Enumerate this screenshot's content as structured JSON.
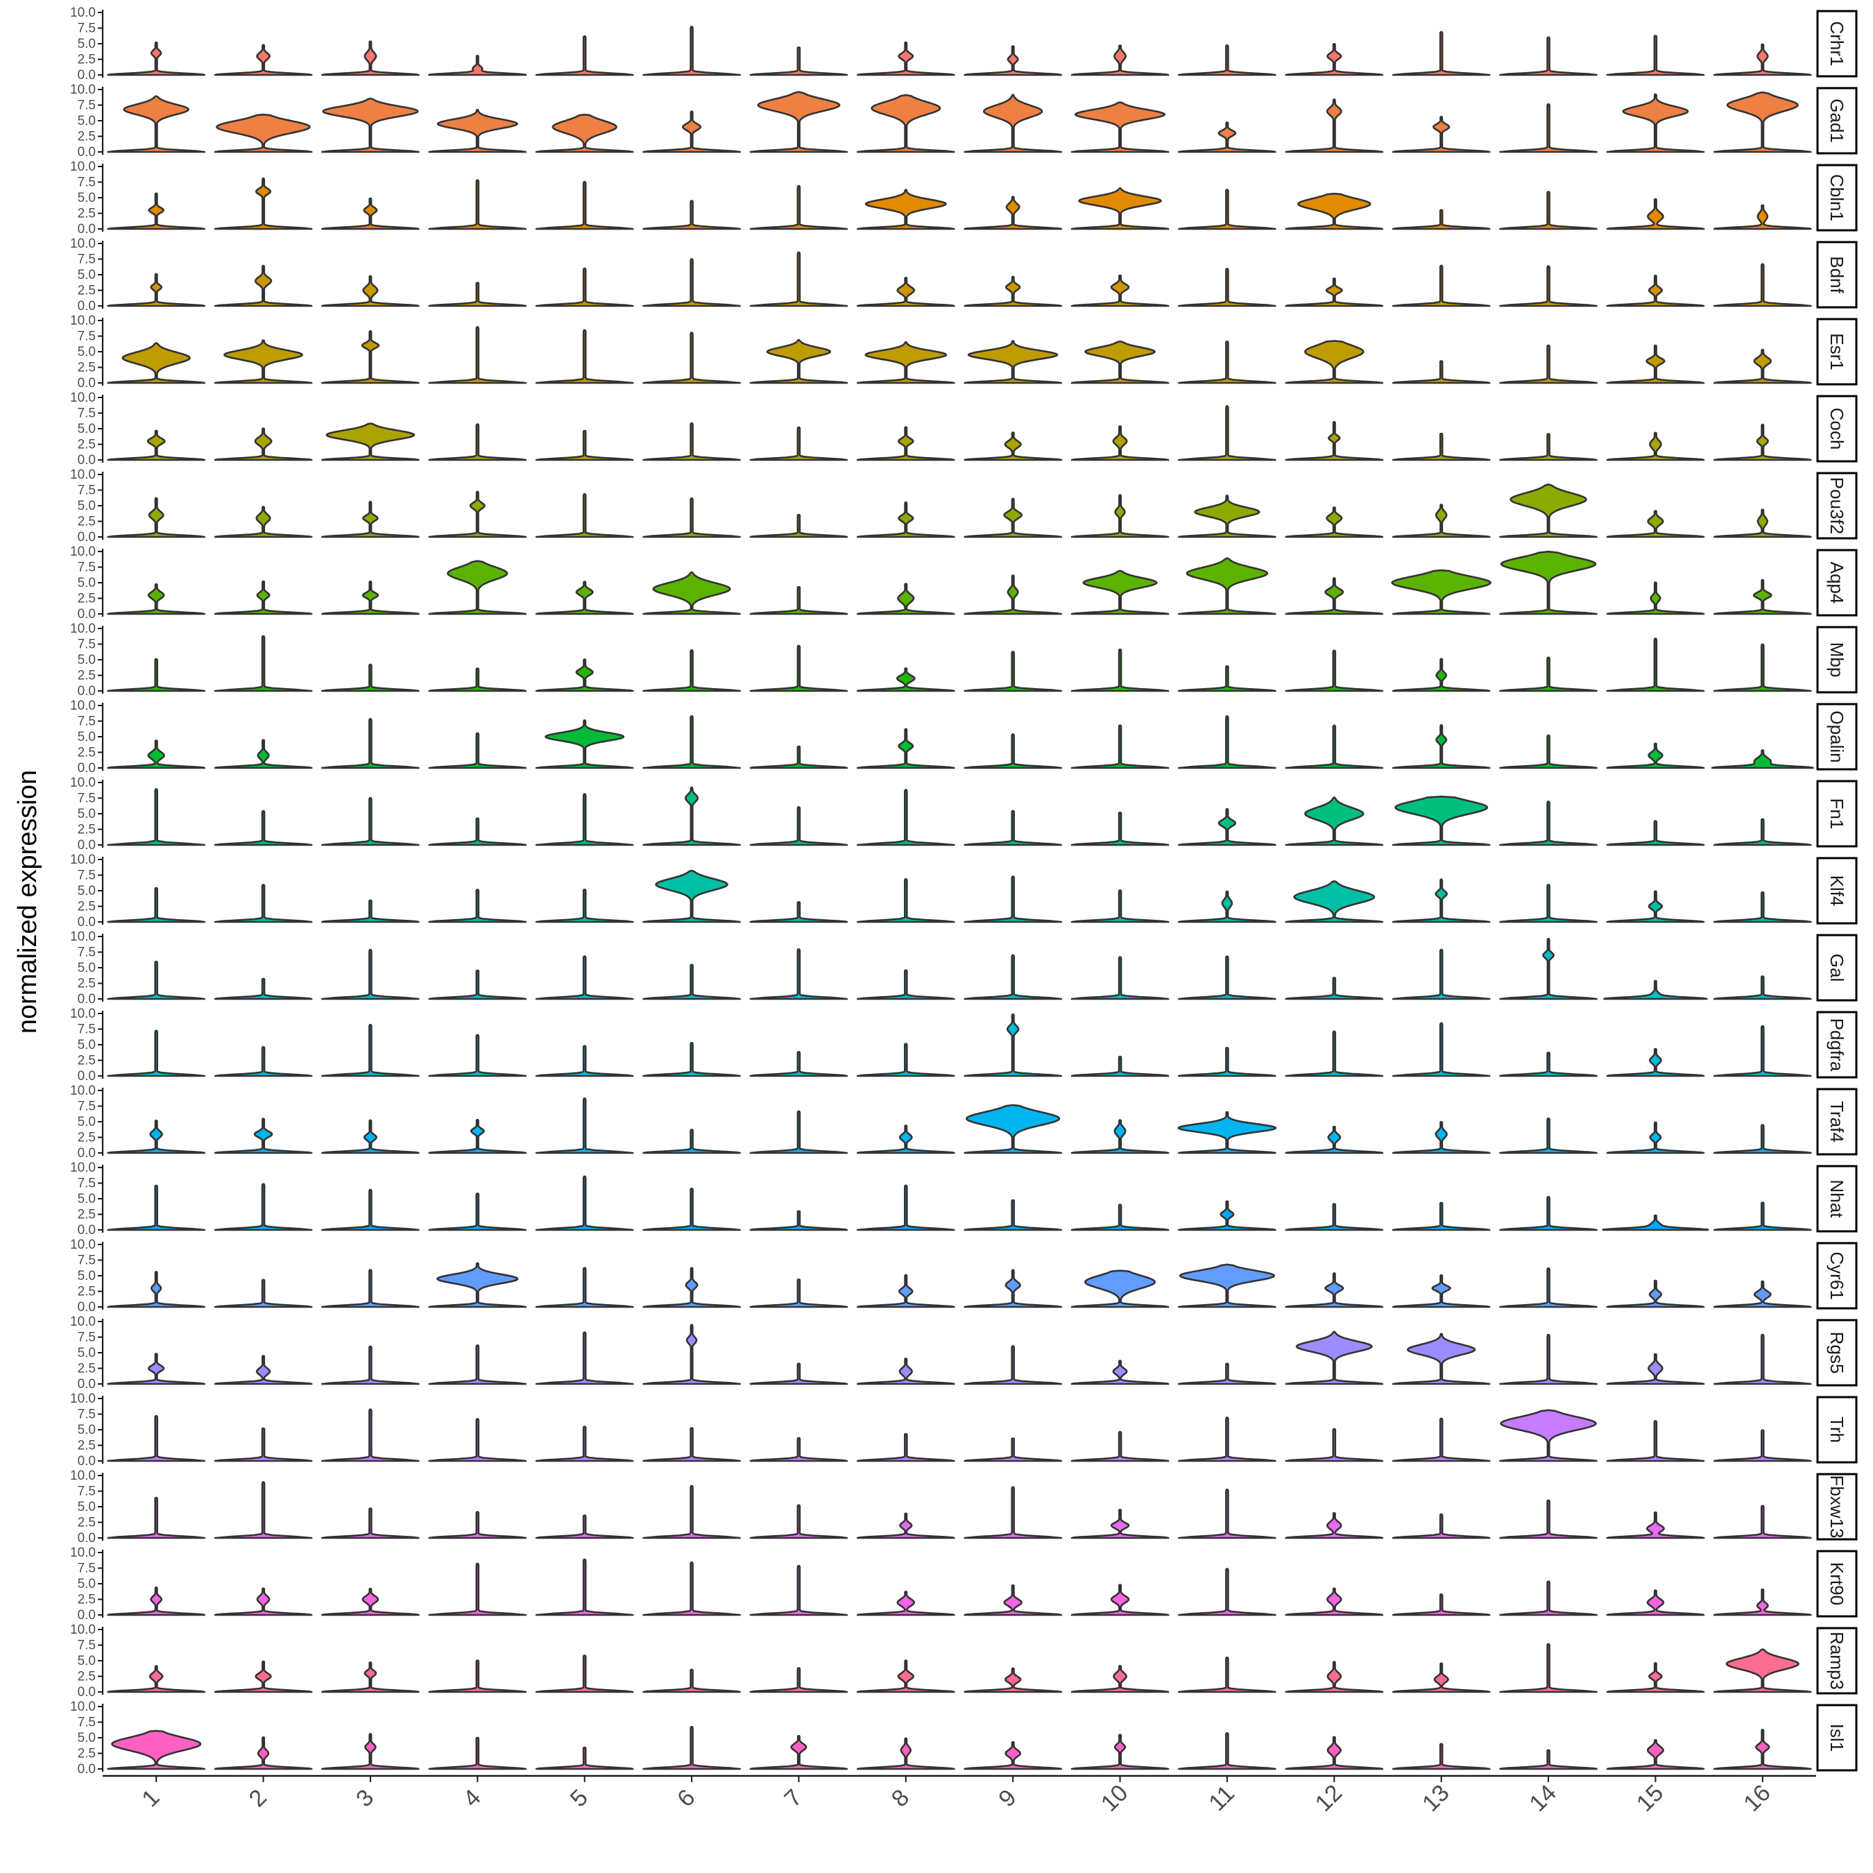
{
  "chart_data": {
    "type": "violin",
    "ylabel": "normalized expression",
    "xlabel": "",
    "ylim": [
      0,
      10
    ],
    "yticks": [
      "0.0",
      "2.5",
      "5.0",
      "7.5",
      "10.0"
    ],
    "categories": [
      "1",
      "2",
      "3",
      "4",
      "5",
      "6",
      "7",
      "8",
      "9",
      "10",
      "11",
      "12",
      "13",
      "14",
      "15",
      "16"
    ],
    "genes": [
      "Crhr1",
      "Gad1",
      "Cbln1",
      "Bdnf",
      "Esr1",
      "Coch",
      "Pou3f2",
      "Aqp4",
      "Mbp",
      "Opalin",
      "Fn1",
      "Klf4",
      "Gal",
      "Pdgfra",
      "Traf4",
      "Nhat",
      "Cyr61",
      "Rgs5",
      "Trh",
      "Fbxw13",
      "Krt90",
      "Ramp3",
      "Isl1"
    ],
    "colors": [
      "#F8766D",
      "#EE8043",
      "#E18A00",
      "#CD9600",
      "#BE9C00",
      "#AAA300",
      "#8CAB00",
      "#5BB300",
      "#24B700",
      "#00BA38",
      "#00BF7D",
      "#00BFA5",
      "#00BFC4",
      "#00BCD8",
      "#00B4F0",
      "#00A9FF",
      "#619CFF",
      "#9B8DFF",
      "#C77CFF",
      "#E76BF3",
      "#F564E3",
      "#FF6C91",
      "#FF61C3"
    ],
    "expression_level": [
      [
        3.5,
        3,
        3,
        1,
        0,
        0,
        0,
        3,
        2.5,
        3,
        0,
        3,
        0,
        0,
        0,
        3
      ],
      [
        6.8,
        4,
        6.5,
        4.5,
        4,
        4,
        7.5,
        7,
        6.5,
        6,
        3,
        6.5,
        4,
        0,
        6.5,
        7.5
      ],
      [
        3,
        6,
        3,
        0,
        0,
        0,
        0,
        4,
        3.5,
        4.5,
        0,
        4,
        0,
        0,
        2,
        2
      ],
      [
        3,
        4,
        2.5,
        0,
        0,
        0,
        0,
        2.5,
        3,
        3,
        0,
        2.5,
        0,
        0,
        2.5,
        0
      ],
      [
        4,
        4.5,
        6,
        0,
        0,
        0,
        5,
        4.5,
        4.5,
        5,
        0,
        5,
        0,
        0,
        3.5,
        3.5
      ],
      [
        3,
        3,
        4,
        0,
        0,
        0,
        0,
        3,
        2.5,
        3,
        0,
        3.5,
        0,
        0,
        2.5,
        3
      ],
      [
        3.5,
        3,
        3,
        5,
        0,
        0,
        0,
        3,
        3.5,
        4,
        4,
        3,
        3.5,
        6,
        2.5,
        2.5
      ],
      [
        3,
        3,
        3,
        6.5,
        3.5,
        4,
        0,
        2.5,
        3.5,
        5,
        6.5,
        3.5,
        5,
        8,
        2.5,
        3
      ],
      [
        0,
        0,
        0,
        0,
        3,
        0,
        0,
        2,
        0,
        0,
        0,
        0,
        2.5,
        0,
        0,
        0
      ],
      [
        2,
        2,
        0,
        0,
        5,
        0,
        0,
        3.5,
        0,
        0,
        0,
        0,
        4.5,
        0,
        2,
        1
      ],
      [
        0,
        0,
        0,
        0,
        0,
        7.5,
        0,
        0,
        0,
        0,
        3.5,
        5,
        6,
        0,
        0,
        0
      ],
      [
        0,
        0,
        0,
        0,
        0,
        6,
        0,
        0,
        0,
        0,
        3,
        4,
        4.5,
        0,
        2.5,
        0
      ],
      [
        0,
        0,
        0,
        0,
        0,
        0,
        0,
        0,
        0,
        0,
        0,
        0,
        0,
        7,
        0.5,
        0
      ],
      [
        0,
        0,
        0,
        0,
        0,
        0,
        0,
        0,
        7.5,
        0,
        0,
        0,
        0,
        0,
        2.5,
        0
      ],
      [
        3,
        3,
        2.5,
        3.5,
        0,
        0,
        0,
        2.5,
        5.5,
        3.5,
        4,
        2.5,
        3,
        0,
        2.5,
        0
      ],
      [
        0,
        0,
        0,
        0,
        0,
        0,
        0,
        0,
        0,
        0,
        2.5,
        0,
        0,
        0,
        0.5,
        0
      ],
      [
        3,
        0,
        0,
        4.5,
        0,
        3.5,
        0,
        2.5,
        3.5,
        4,
        5,
        3,
        3,
        0,
        2,
        2
      ],
      [
        2.5,
        2,
        0,
        0,
        0,
        7,
        0,
        2,
        0,
        2,
        0,
        6,
        5.5,
        0,
        2.5,
        0
      ],
      [
        0,
        0,
        0,
        0,
        0,
        0,
        0,
        0,
        0,
        0,
        0,
        0,
        0,
        6,
        0,
        0
      ],
      [
        0,
        0,
        0,
        0,
        0,
        0,
        0,
        2,
        0,
        2,
        0,
        2,
        0,
        0,
        1.5,
        0
      ],
      [
        2.5,
        2.5,
        2.5,
        0,
        0,
        0,
        0,
        2,
        2,
        2.5,
        0,
        2.5,
        0,
        0,
        2,
        1.5
      ],
      [
        2.5,
        2.5,
        3,
        0,
        0,
        0,
        0,
        2.5,
        2,
        2.5,
        0,
        2.5,
        2,
        0,
        2.5,
        4.5
      ],
      [
        4,
        2.5,
        3.5,
        0,
        0,
        0,
        3.5,
        3,
        2.5,
        3.5,
        0,
        3,
        0,
        0,
        3,
        3.5
      ]
    ]
  }
}
